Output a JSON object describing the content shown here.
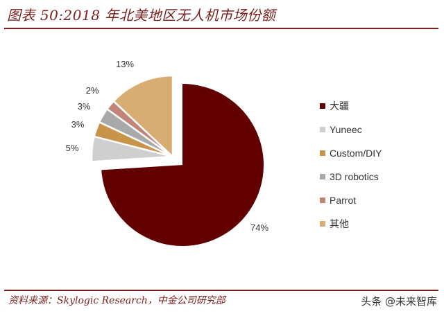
{
  "header": {
    "title": "图表 50:2018 年北美地区无人机市场份额"
  },
  "footer": {
    "source": "资料来源：Skylogic Research，中金公司研究部",
    "watermark": "头条 @未来智库"
  },
  "chart_data": {
    "type": "pie",
    "title": "2018年北美地区无人机市场份额",
    "categories": [
      "大疆",
      "Yuneec",
      "Custom/DIY",
      "3D robotics",
      "Parrot",
      "其他"
    ],
    "values": [
      74,
      5,
      3,
      3,
      2,
      13
    ],
    "labels": [
      "74%",
      "5%",
      "3%",
      "3%",
      "2%",
      "13%"
    ],
    "colors": [
      "#620000",
      "#cfcfcf",
      "#c8944a",
      "#a9a9a9",
      "#c08478",
      "#d7ad74"
    ],
    "exploded": [
      false,
      true,
      true,
      true,
      true,
      true
    ],
    "start_angle": "12 o'clock, clockwise",
    "legend_position": "right"
  },
  "legend": {
    "items": [
      {
        "label": "大疆",
        "color": "#620000"
      },
      {
        "label": "Yuneec",
        "color": "#cfcfcf"
      },
      {
        "label": "Custom/DIY",
        "color": "#c8944a"
      },
      {
        "label": "3D robotics",
        "color": "#a9a9a9"
      },
      {
        "label": "Parrot",
        "color": "#c08478"
      },
      {
        "label": "其他",
        "color": "#d7ad74"
      }
    ]
  }
}
